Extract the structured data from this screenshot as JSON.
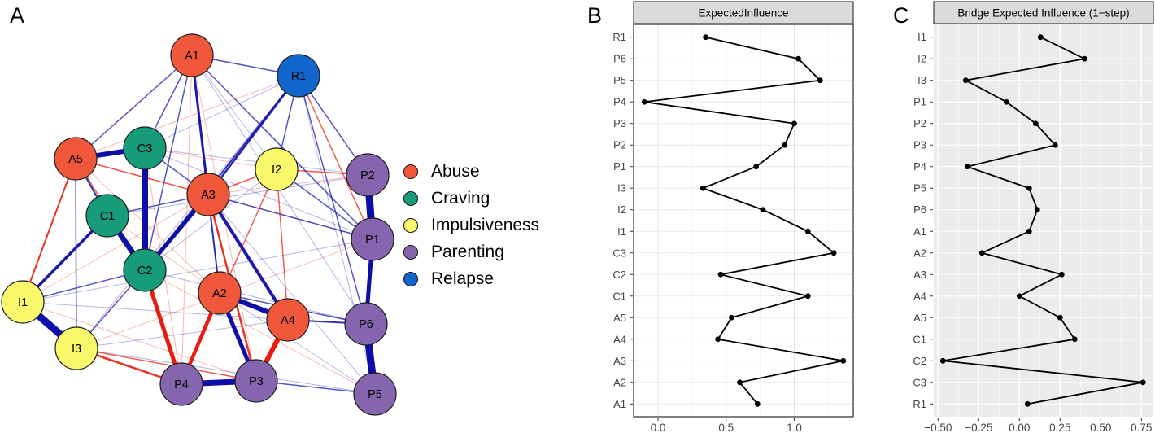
{
  "panels": {
    "a": {
      "label": "A"
    },
    "b": {
      "label": "B"
    },
    "c": {
      "label": "C"
    }
  },
  "network": {
    "groups": [
      {
        "label": "Abuse",
        "color": "#F1583B"
      },
      {
        "label": "Craving",
        "color": "#169C78"
      },
      {
        "label": "Impulsiveness",
        "color": "#FAF96C"
      },
      {
        "label": "Parenting",
        "color": "#8566AE"
      },
      {
        "label": "Relapse",
        "color": "#1166CB"
      }
    ],
    "edge_colors": {
      "blue": "#0D0DA8",
      "red": "#EA1A0C"
    },
    "nodes": [
      [
        "A1",
        "Abuse",
        236,
        68
      ],
      [
        "R1",
        "Relapse",
        367,
        93
      ],
      [
        "C3",
        "Craving",
        178,
        182
      ],
      [
        "A5",
        "Abuse",
        93,
        195
      ],
      [
        "I2",
        "Impulsiveness",
        340,
        208
      ],
      [
        "P2",
        "Parenting",
        452,
        215
      ],
      [
        "A3",
        "Abuse",
        256,
        239
      ],
      [
        "C1",
        "Craving",
        132,
        265
      ],
      [
        "P1",
        "Parenting",
        458,
        294
      ],
      [
        "C2",
        "Craving",
        178,
        332
      ],
      [
        "A2",
        "Abuse",
        270,
        360
      ],
      [
        "I1",
        "Impulsiveness",
        28,
        371
      ],
      [
        "A4",
        "Abuse",
        354,
        393
      ],
      [
        "P6",
        "Parenting",
        450,
        398
      ],
      [
        "I3",
        "Impulsiveness",
        94,
        428
      ],
      [
        "P3",
        "Parenting",
        315,
        468
      ],
      [
        "P4",
        "Parenting",
        223,
        472
      ],
      [
        "P5",
        "Parenting",
        461,
        484
      ]
    ],
    "edges": [
      [
        "A1",
        "A2",
        "red",
        1,
        0.3
      ],
      [
        "A1",
        "P4",
        "red",
        1,
        0.3
      ],
      [
        "A1",
        "I2",
        "blue",
        1,
        0.3
      ],
      [
        "A1",
        "P6",
        "blue",
        1,
        0.3
      ],
      [
        "A1",
        "P3",
        "red",
        1,
        0.3
      ],
      [
        "R1",
        "C3",
        "blue",
        1,
        0.3
      ],
      [
        "R1",
        "A5",
        "red",
        1,
        0.3
      ],
      [
        "R1",
        "I3",
        "blue",
        1,
        0.3
      ],
      [
        "R1",
        "P5",
        "blue",
        1,
        0.3
      ],
      [
        "C3",
        "I2",
        "red",
        1,
        0.3
      ],
      [
        "C3",
        "P2",
        "blue",
        1,
        0.3
      ],
      [
        "C3",
        "P4",
        "red",
        1,
        0.3
      ],
      [
        "C3",
        "P1",
        "blue",
        1,
        0.3
      ],
      [
        "A5",
        "P1",
        "red",
        1,
        0.3
      ],
      [
        "A5",
        "A2",
        "red",
        1,
        0.3
      ],
      [
        "C1",
        "P2",
        "blue",
        1,
        0.3
      ],
      [
        "C1",
        "A2",
        "red",
        1,
        0.3
      ],
      [
        "I1",
        "P1",
        "blue",
        1,
        0.3
      ],
      [
        "I1",
        "P3",
        "red",
        1,
        0.3
      ],
      [
        "I1",
        "A4",
        "blue",
        1,
        0.3
      ],
      [
        "I3",
        "A4",
        "blue",
        1,
        0.3
      ],
      [
        "I3",
        "P5",
        "blue",
        1,
        0.3
      ],
      [
        "C2",
        "P5",
        "red",
        1,
        0.3
      ],
      [
        "A3",
        "P5",
        "blue",
        1,
        0.3
      ],
      [
        "I2",
        "C2",
        "blue",
        1,
        0.3
      ],
      [
        "P2",
        "A3",
        "red",
        1,
        0.3
      ],
      [
        "A2",
        "P5",
        "blue",
        1,
        0.3
      ],
      [
        "C2",
        "P6",
        "blue",
        1,
        0.3
      ],
      [
        "A3",
        "I1",
        "red",
        1,
        0.3
      ],
      [
        "P1",
        "I3",
        "red",
        1,
        0.3
      ],
      [
        "A1",
        "A5",
        "blue",
        1.5,
        0.7
      ],
      [
        "A1",
        "C3",
        "blue",
        1.5,
        0.7
      ],
      [
        "A1",
        "C2",
        "blue",
        1.5,
        0.7
      ],
      [
        "A1",
        "R1",
        "blue",
        1.5,
        0.7
      ],
      [
        "R1",
        "I2",
        "blue",
        1.5,
        0.7
      ],
      [
        "R1",
        "P2",
        "blue",
        1.5,
        0.7
      ],
      [
        "R1",
        "P6",
        "blue",
        1.5,
        0.7
      ],
      [
        "R1",
        "P1",
        "red",
        1.5,
        0.7
      ],
      [
        "I2",
        "P2",
        "red",
        1.5,
        0.7
      ],
      [
        "I2",
        "P1",
        "blue",
        1.5,
        0.7
      ],
      [
        "C2",
        "I3",
        "blue",
        1.5,
        0.7
      ],
      [
        "C3",
        "A3",
        "blue",
        1.5,
        0.7
      ],
      [
        "A3",
        "P1",
        "blue",
        1.5,
        0.7
      ],
      [
        "P3",
        "P5",
        "blue",
        1.5,
        0.7
      ],
      [
        "A2",
        "P6",
        "blue",
        1.5,
        0.7
      ],
      [
        "I2",
        "A3",
        "red",
        1.5,
        0.7
      ],
      [
        "A5",
        "A3",
        "red",
        1.5,
        0.7
      ],
      [
        "A5",
        "C2",
        "red",
        1.5,
        0.7
      ],
      [
        "I1",
        "C2",
        "blue",
        1.5,
        0.7
      ],
      [
        "A5",
        "I3",
        "blue",
        1.5,
        0.7
      ],
      [
        "I3",
        "P3",
        "red",
        1.5,
        0.7
      ],
      [
        "C1",
        "A3",
        "blue",
        1.5,
        0.7
      ],
      [
        "I2",
        "P4",
        "red",
        1.5,
        0.7
      ],
      [
        "I2",
        "A4",
        "red",
        1.5,
        0.7
      ],
      [
        "A1",
        "P1",
        "blue",
        1.5,
        0.7
      ],
      [
        "A5",
        "C1",
        "blue",
        2,
        0.85
      ],
      [
        "R1",
        "C2",
        "blue",
        2,
        0.85
      ],
      [
        "A2",
        "A3",
        "blue",
        2,
        0.85
      ],
      [
        "A4",
        "P6",
        "blue",
        2,
        0.85
      ],
      [
        "A5",
        "I1",
        "red",
        2,
        0.9
      ],
      [
        "A3",
        "P3",
        "red",
        2.5,
        0.9
      ],
      [
        "I3",
        "P4",
        "red",
        2.5,
        0.9
      ],
      [
        "R1",
        "A3",
        "blue",
        2.5,
        0.9
      ],
      [
        "A1",
        "A3",
        "blue",
        3,
        0.95
      ],
      [
        "C1",
        "I1",
        "blue",
        3.5,
        0.95
      ],
      [
        "A3",
        "A4",
        "blue",
        4,
        0.95
      ],
      [
        "A2",
        "P4",
        "red",
        4.5,
        1
      ],
      [
        "C2",
        "A3",
        "blue",
        5,
        1
      ],
      [
        "C2",
        "P4",
        "red",
        5,
        1
      ],
      [
        "A2",
        "P3",
        "blue",
        5,
        1
      ],
      [
        "P1",
        "P6",
        "blue",
        5,
        1
      ],
      [
        "A5",
        "C3",
        "blue",
        6,
        1
      ],
      [
        "A2",
        "A4",
        "blue",
        6,
        1
      ],
      [
        "A4",
        "P3",
        "red",
        6,
        1
      ],
      [
        "C1",
        "C2",
        "blue",
        6.5,
        1
      ],
      [
        "P4",
        "P3",
        "blue",
        7,
        1
      ],
      [
        "C3",
        "C2",
        "blue",
        8,
        1
      ],
      [
        "I1",
        "I3",
        "blue",
        9,
        1
      ],
      [
        "P2",
        "P1",
        "blue",
        9,
        1
      ],
      [
        "P6",
        "P5",
        "blue",
        9,
        1
      ]
    ]
  },
  "chart_data": [
    {
      "type": "line",
      "panel": "B",
      "title": "ExpectedInfluence",
      "orientation": "horizontal-dot-line",
      "categories": [
        "R1",
        "P6",
        "P5",
        "P4",
        "P3",
        "P2",
        "P1",
        "I3",
        "I2",
        "I1",
        "C3",
        "C2",
        "C1",
        "A5",
        "A4",
        "A3",
        "A2",
        "A1"
      ],
      "values": [
        0.35,
        1.03,
        1.19,
        -0.1,
        1.0,
        0.93,
        0.72,
        0.33,
        0.77,
        1.1,
        1.29,
        0.46,
        1.1,
        0.54,
        0.44,
        1.36,
        0.6,
        0.73
      ],
      "x_ticks": {
        "values": [
          0,
          0.5,
          1.0
        ],
        "labels": [
          "0.0",
          "0.5",
          "1.0"
        ]
      },
      "xlim": [
        -0.18,
        1.43
      ],
      "xlabel": "",
      "ylabel": "",
      "grid": true,
      "line_color": "#000000",
      "point_color": "#000000"
    },
    {
      "type": "line",
      "panel": "C",
      "title": "Bridge Expected Influence (1−step)",
      "orientation": "horizontal-dot-line",
      "categories": [
        "I1",
        "I2",
        "I3",
        "P1",
        "P2",
        "P3",
        "P4",
        "P5",
        "P6",
        "A1",
        "A2",
        "A3",
        "A4",
        "A5",
        "C1",
        "C2",
        "C3",
        "R1"
      ],
      "values": [
        0.13,
        0.4,
        -0.33,
        -0.08,
        0.1,
        0.22,
        -0.32,
        0.06,
        0.11,
        0.06,
        -0.23,
        0.26,
        0.0,
        0.25,
        0.34,
        -0.47,
        0.76,
        0.05
      ],
      "x_ticks": {
        "values": [
          -0.5,
          -0.25,
          0,
          0.25,
          0.5,
          0.75
        ],
        "labels": [
          "−0.50",
          "−0.25",
          "0.00",
          "0.25",
          "0.50",
          "0.75"
        ]
      },
      "xlim": [
        -0.525,
        0.835
      ],
      "xlabel": "",
      "ylabel": "",
      "grid": true,
      "line_color": "#000000",
      "point_color": "#000000"
    }
  ]
}
